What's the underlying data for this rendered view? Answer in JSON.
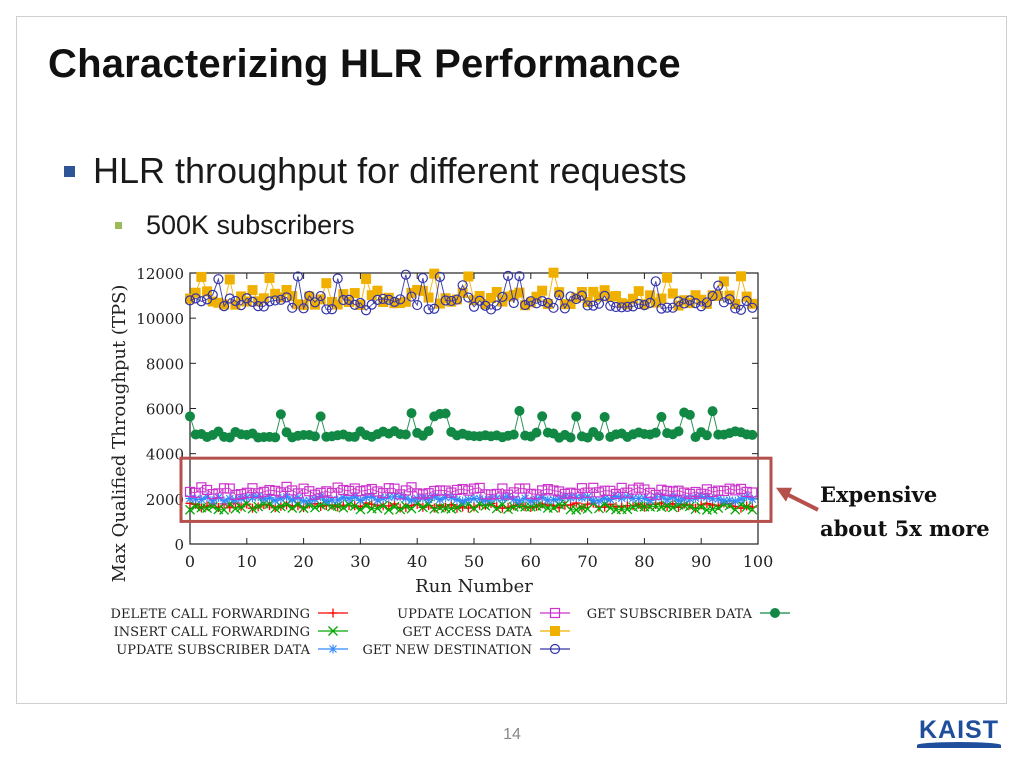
{
  "slide": {
    "title": "Characterizing HLR Performance",
    "bullet1": "HLR throughput for different requests",
    "bullet2": "500K subscribers",
    "callout_line1": "Expensive",
    "callout_line2": "about 5x more",
    "page_number": "14",
    "logo": "KAIST"
  },
  "chart_data": {
    "type": "line",
    "xlabel": "Run Number",
    "ylabel": "Max Qualified Throughput (TPS)",
    "xlim": [
      0,
      100
    ],
    "ylim": [
      0,
      12000
    ],
    "x_ticks": [
      0,
      10,
      20,
      30,
      40,
      50,
      60,
      70,
      80,
      90,
      100
    ],
    "y_ticks": [
      0,
      2000,
      4000,
      6000,
      8000,
      10000,
      12000
    ],
    "y_tick_labels": [
      "0",
      "2000",
      "4000",
      "6000",
      "8000",
      "10000",
      "12000"
    ],
    "legend_position": "bottom",
    "series": [
      {
        "name": "DELETE CALL FORWARDING",
        "marker": "plus",
        "color": "#ff0000",
        "baseline": 1700,
        "amplitude": 120
      },
      {
        "name": "INSERT CALL FORWARDING",
        "marker": "x",
        "color": "#00aa00",
        "baseline": 1650,
        "amplitude": 150
      },
      {
        "name": "UPDATE SUBSCRIBER DATA",
        "marker": "star",
        "color": "#3388ff",
        "baseline": 2000,
        "amplitude": 100
      },
      {
        "name": "UPDATE LOCATION",
        "marker": "square-open",
        "color": "#cc33cc",
        "baseline": 2350,
        "amplitude": 180
      },
      {
        "name": "GET ACCESS DATA",
        "marker": "square-filled",
        "color": "#f0b000",
        "baseline": 10900,
        "amplitude": 350
      },
      {
        "name": "GET NEW DESTINATION",
        "marker": "circle-open",
        "color": "#3333aa",
        "baseline": 10700,
        "amplitude": 350
      },
      {
        "name": "GET SUBSCRIBER DATA",
        "marker": "circle-filled",
        "color": "#118844",
        "baseline": 4850,
        "amplitude": 150
      }
    ],
    "annotation": "Expensive about 5x more",
    "highlight_box_range": [
      1000,
      3800
    ]
  }
}
